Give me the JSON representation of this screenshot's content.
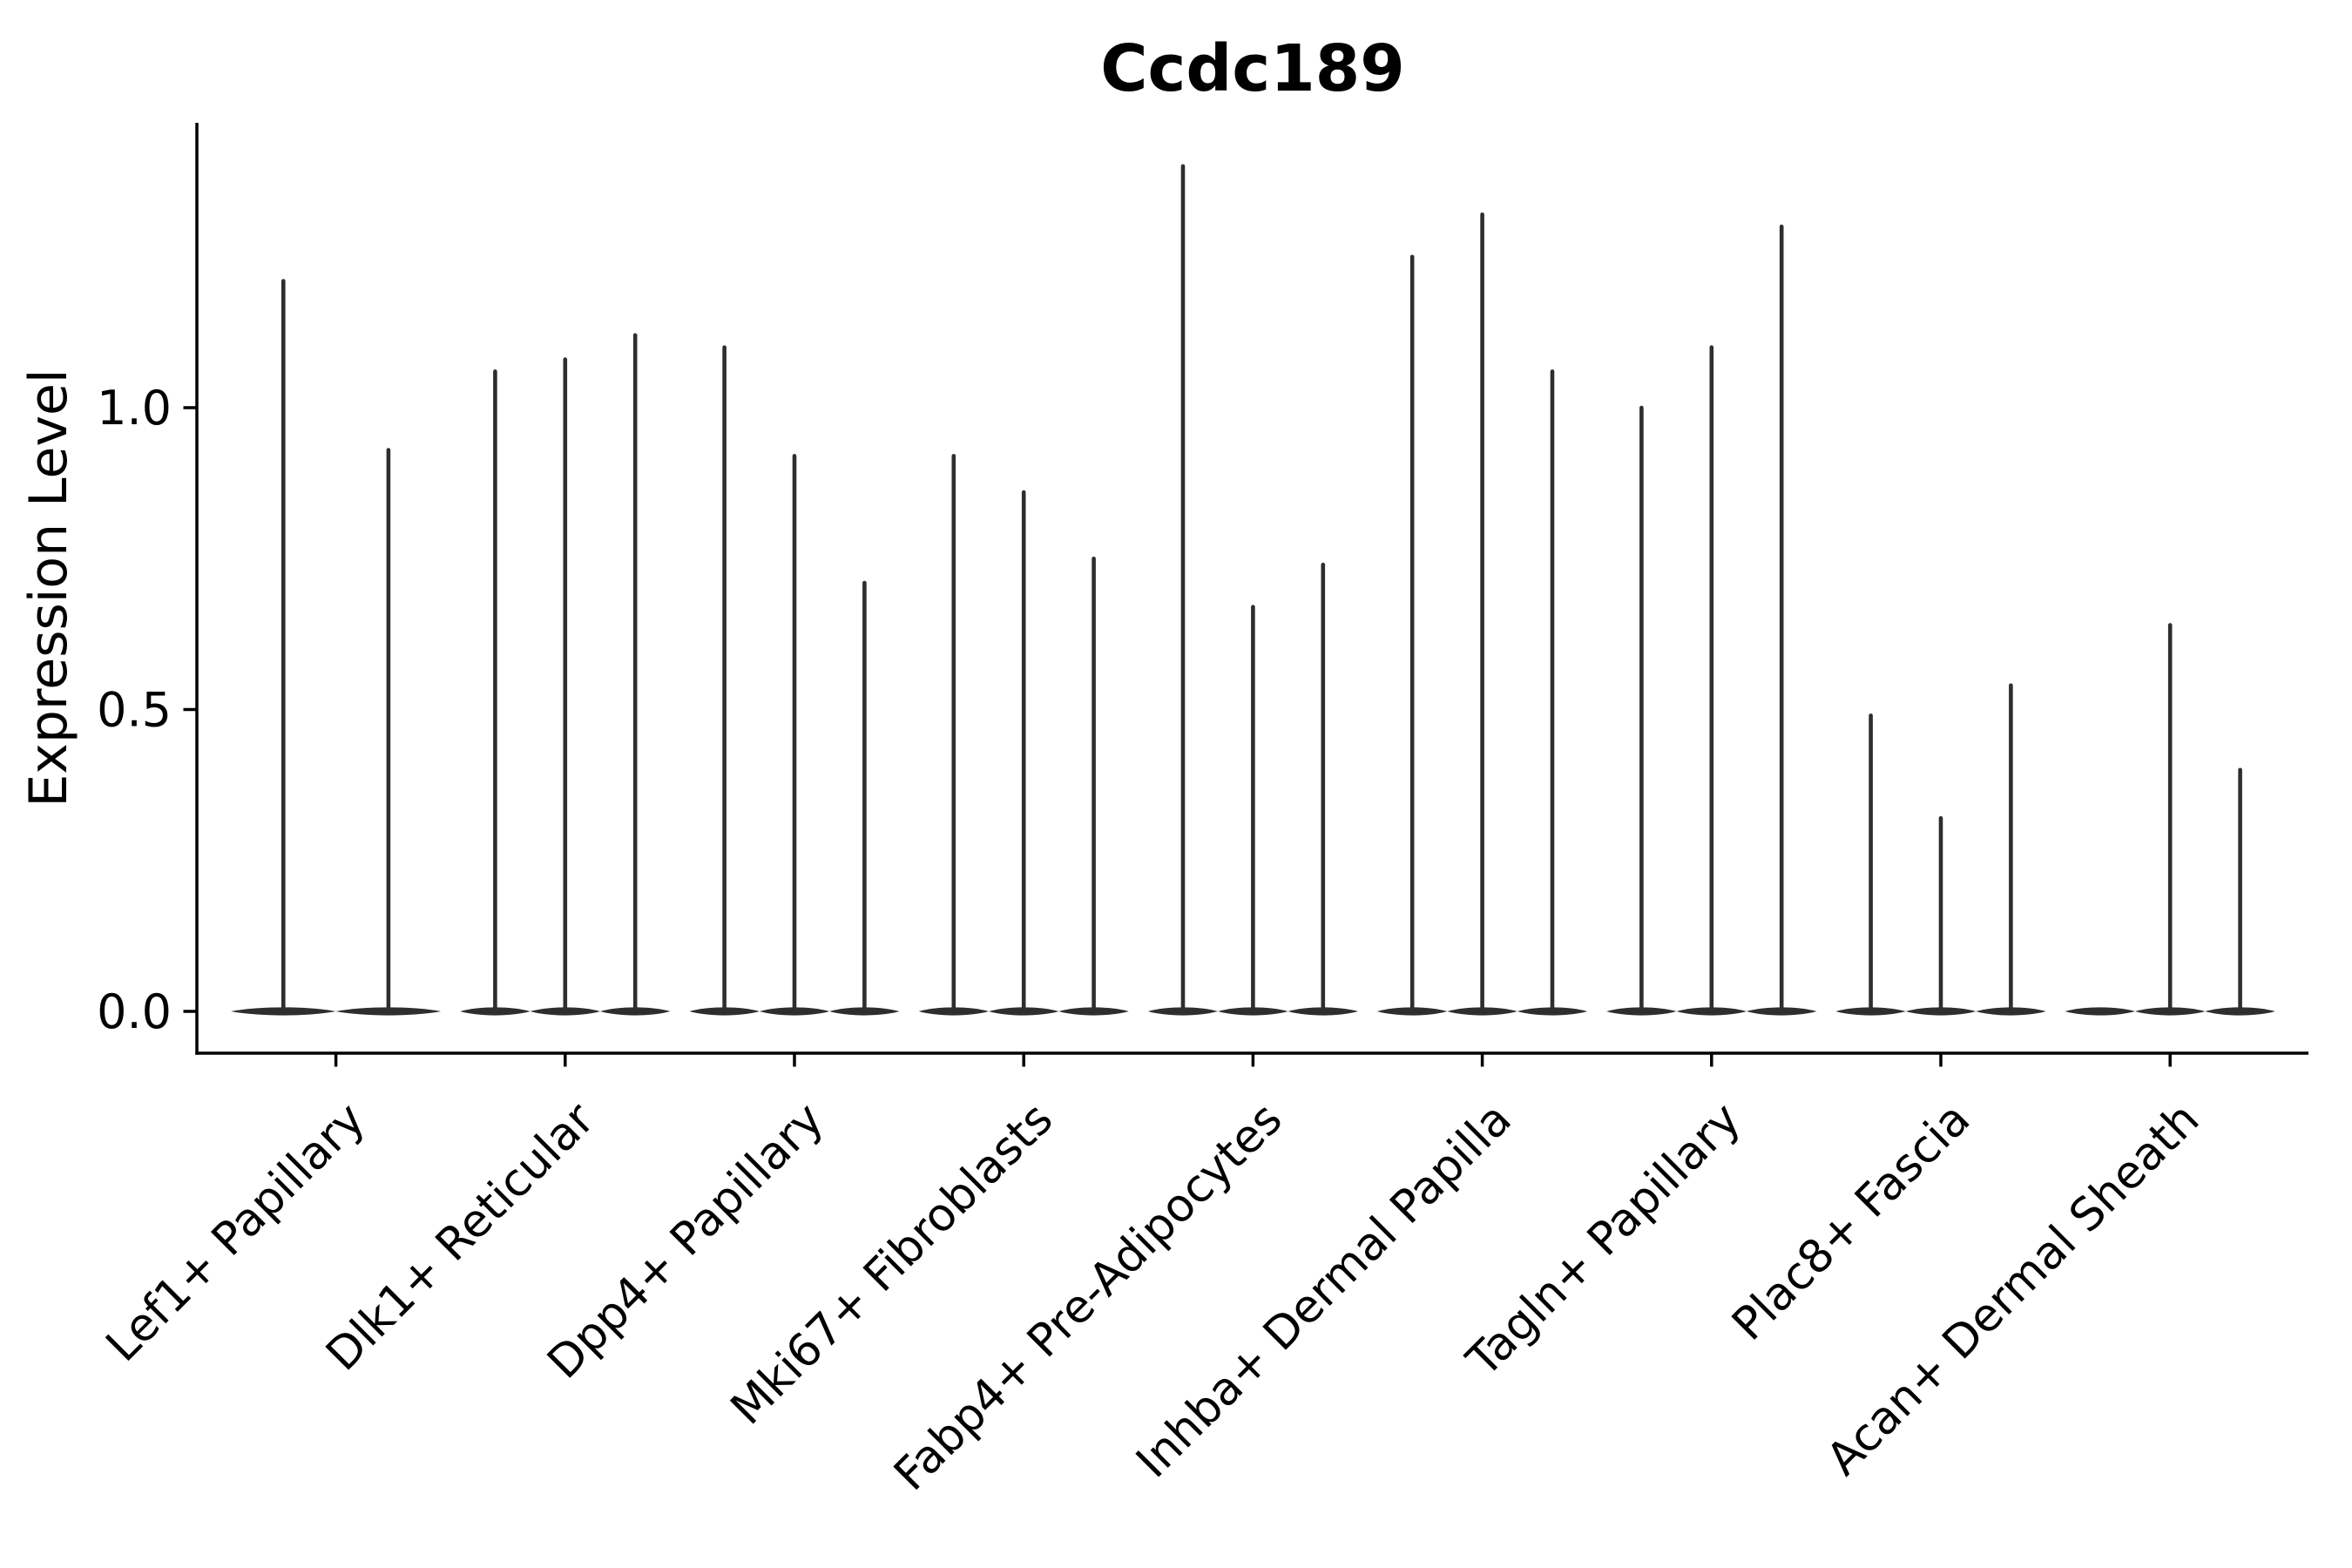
{
  "chart_data": {
    "type": "violin",
    "title": "Ccdc189",
    "xlabel": "",
    "ylabel": "Expression Level",
    "ytick_labels": [
      "0.0",
      "0.5",
      "1.0"
    ],
    "ytick_values": [
      0.0,
      0.5,
      1.0
    ],
    "ylim": [
      -0.07,
      1.47
    ],
    "grid": false,
    "legend": "none",
    "style_note": "each violin is a flat zero-density lens at y=0 with a thin vertical spike reaching the max expression value",
    "categories": [
      "Lef1+ Papillary",
      "Dlk1+ Reticular",
      "Dpp4+ Papillary",
      "Mki67+ Fibroblasts",
      "Fabp4+ Pre-Adipocytes",
      "Inhba+ Dermal Papilla",
      "Tagln+ Papillary",
      "Plac8+ Fascia",
      "Acan+ Dermal Sheath"
    ],
    "groups": [
      {
        "label": "Lef1+ Papillary",
        "violin_max_values": [
          1.21,
          0.93
        ]
      },
      {
        "label": "Dlk1+ Reticular",
        "violin_max_values": [
          1.06,
          1.08,
          1.12
        ]
      },
      {
        "label": "Dpp4+ Papillary",
        "violin_max_values": [
          1.1,
          0.92,
          0.71
        ]
      },
      {
        "label": "Mki67+ Fibroblasts",
        "violin_max_values": [
          0.92,
          0.86,
          0.75
        ]
      },
      {
        "label": "Fabp4+ Pre-Adipocytes",
        "violin_max_values": [
          1.4,
          0.67,
          0.74
        ]
      },
      {
        "label": "Inhba+ Dermal Papilla",
        "violin_max_values": [
          1.25,
          1.32,
          1.06
        ]
      },
      {
        "label": "Tagln+ Papillary",
        "violin_max_values": [
          1.0,
          1.1,
          1.3
        ]
      },
      {
        "label": "Plac8+ Fascia",
        "violin_max_values": [
          0.49,
          0.32,
          0.54
        ]
      },
      {
        "label": "Acan+ Dermal Sheath",
        "violin_max_values": [
          0.0,
          0.64,
          0.4
        ]
      }
    ],
    "colors": {
      "violin": "#2e2e2e",
      "axis": "#000000",
      "text": "#000000",
      "background": "#ffffff"
    }
  }
}
